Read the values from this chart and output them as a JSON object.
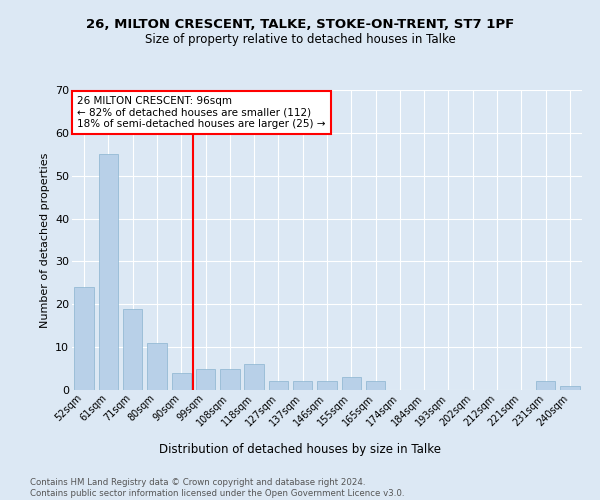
{
  "title1": "26, MILTON CRESCENT, TALKE, STOKE-ON-TRENT, ST7 1PF",
  "title2": "Size of property relative to detached houses in Talke",
  "xlabel": "Distribution of detached houses by size in Talke",
  "ylabel": "Number of detached properties",
  "categories": [
    "52sqm",
    "61sqm",
    "71sqm",
    "80sqm",
    "90sqm",
    "99sqm",
    "108sqm",
    "118sqm",
    "127sqm",
    "137sqm",
    "146sqm",
    "155sqm",
    "165sqm",
    "174sqm",
    "184sqm",
    "193sqm",
    "202sqm",
    "212sqm",
    "221sqm",
    "231sqm",
    "240sqm"
  ],
  "values": [
    24,
    55,
    19,
    11,
    4,
    5,
    5,
    6,
    2,
    2,
    2,
    3,
    2,
    0,
    0,
    0,
    0,
    0,
    0,
    2,
    1
  ],
  "bar_color": "#b8d0e8",
  "bar_edge_color": "#8ab4d0",
  "annotation_text": "26 MILTON CRESCENT: 96sqm\n← 82% of detached houses are smaller (112)\n18% of semi-detached houses are larger (25) →",
  "footnote": "Contains HM Land Registry data © Crown copyright and database right 2024.\nContains public sector information licensed under the Open Government Licence v3.0.",
  "background_color": "#dce8f4",
  "ylim": [
    0,
    70
  ],
  "yticks": [
    0,
    10,
    20,
    30,
    40,
    50,
    60,
    70
  ],
  "red_line_index": 4.5
}
